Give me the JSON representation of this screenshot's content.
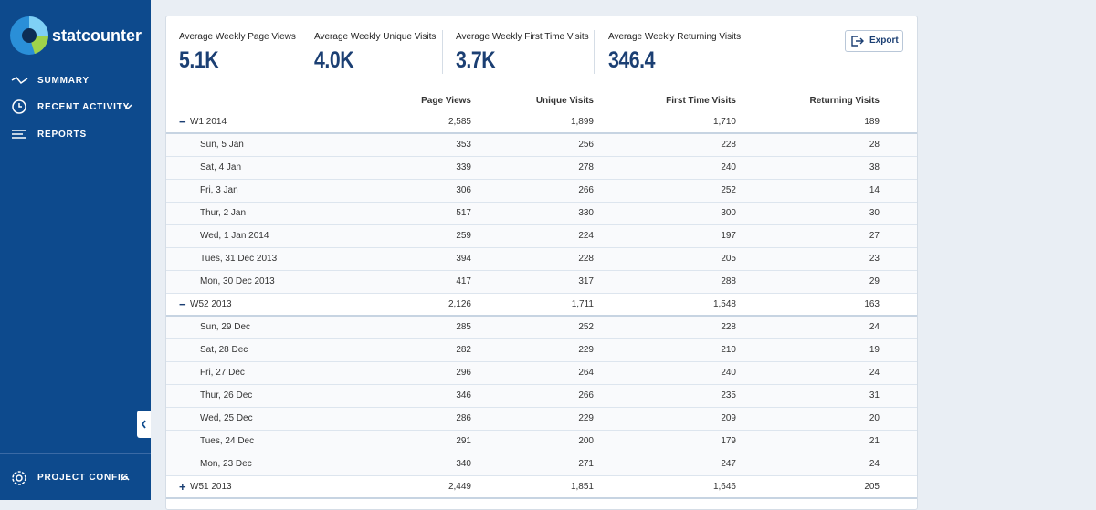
{
  "sidebar": {
    "logo": "statcounter",
    "nav": [
      "SUMMARY",
      "RECENT ACTIVITY",
      "REPORTS"
    ],
    "footer": "PROJECT CONFIG"
  },
  "summary": [
    {
      "label": "Average Weekly Page Views",
      "value": "5.1K"
    },
    {
      "label": "Average Weekly Unique Visits",
      "value": "4.0K"
    },
    {
      "label": "Average Weekly First Time Visits",
      "value": "3.7K"
    },
    {
      "label": "Average Weekly Returning Visits",
      "value": "346.4"
    }
  ],
  "export": "Export",
  "table": {
    "columns": [
      "Page Views",
      "Unique Visits",
      "First Time Visits",
      "Returning Visits"
    ],
    "groups": [
      {
        "label": "W1 2014",
        "values": [
          "2,585",
          "1,899",
          "1,710",
          "189"
        ],
        "rows": [
          {
            "label": "Sun, 5 Jan",
            "values": [
              "353",
              "256",
              "228",
              "28"
            ]
          },
          {
            "label": "Sat, 4 Jan",
            "values": [
              "339",
              "278",
              "240",
              "38"
            ]
          },
          {
            "label": "Fri, 3 Jan",
            "values": [
              "306",
              "266",
              "252",
              "14"
            ]
          },
          {
            "label": "Thur, 2 Jan",
            "values": [
              "517",
              "330",
              "300",
              "30"
            ]
          },
          {
            "label": "Wed, 1 Jan 2014",
            "values": [
              "259",
              "224",
              "197",
              "27"
            ]
          },
          {
            "label": "Tues, 31 Dec 2013",
            "values": [
              "394",
              "228",
              "205",
              "23"
            ]
          },
          {
            "label": "Mon, 30 Dec 2013",
            "values": [
              "417",
              "317",
              "288",
              "29"
            ]
          }
        ]
      },
      {
        "label": "W52 2013",
        "values": [
          "2,126",
          "1,711",
          "1,548",
          "163"
        ],
        "rows": [
          {
            "label": "Sun, 29 Dec",
            "values": [
              "285",
              "252",
              "228",
              "24"
            ]
          },
          {
            "label": "Sat, 28 Dec",
            "values": [
              "282",
              "229",
              "210",
              "19"
            ]
          },
          {
            "label": "Fri, 27 Dec",
            "values": [
              "296",
              "264",
              "240",
              "24"
            ]
          },
          {
            "label": "Thur, 26 Dec",
            "values": [
              "346",
              "266",
              "235",
              "31"
            ]
          },
          {
            "label": "Wed, 25 Dec",
            "values": [
              "286",
              "229",
              "209",
              "20"
            ]
          },
          {
            "label": "Tues, 24 Dec",
            "values": [
              "291",
              "200",
              "179",
              "21"
            ]
          },
          {
            "label": "Mon, 23 Dec",
            "values": [
              "340",
              "271",
              "247",
              "24"
            ]
          }
        ]
      },
      {
        "label": "W51 2013",
        "values": [
          "2,449",
          "1,851",
          "1,646",
          "205"
        ],
        "rows": []
      }
    ]
  }
}
